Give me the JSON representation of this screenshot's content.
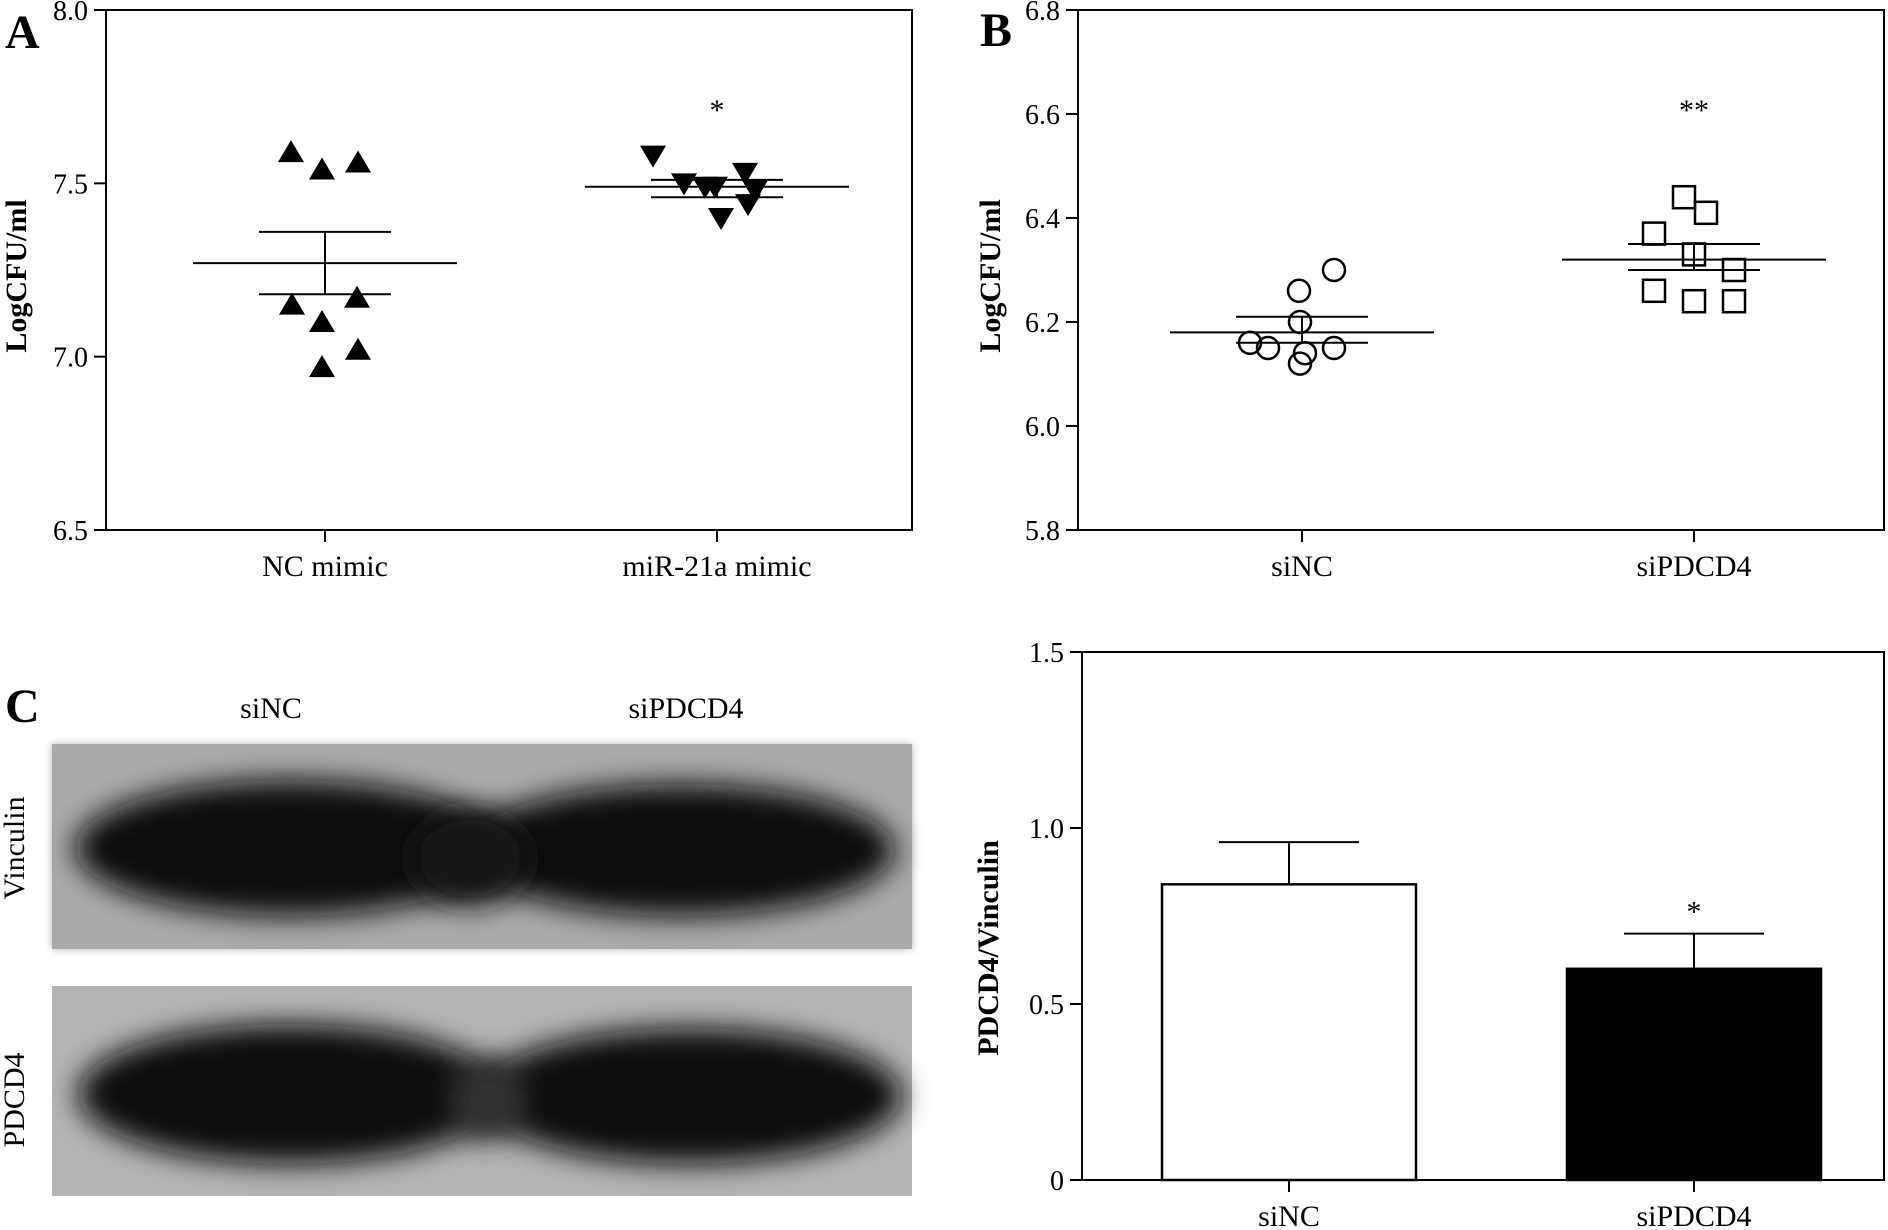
{
  "chart_data": [
    {
      "panel": "A",
      "type": "scatter",
      "ylabel": "LogCFU/ml",
      "ylim": [
        6.5,
        8.0
      ],
      "yticks": [
        "6.5",
        "7.0",
        "7.5",
        "8.0"
      ],
      "categories": [
        "NC mimic",
        "miR-21a mimic"
      ],
      "series": [
        {
          "category": "NC mimic",
          "marker": "triangle-up",
          "values": [
            7.59,
            7.54,
            7.56,
            7.15,
            7.17,
            7.1,
            7.02,
            6.97
          ],
          "mean": 7.27,
          "sem_upper": 7.36,
          "sem_lower": 7.18,
          "annotation": ""
        },
        {
          "category": "miR-21a mimic",
          "marker": "triangle-down",
          "values": [
            7.58,
            7.5,
            7.49,
            7.49,
            7.53,
            7.48,
            7.44,
            7.4
          ],
          "mean": 7.49,
          "sem_upper": 7.51,
          "sem_lower": 7.46,
          "annotation": "*"
        }
      ]
    },
    {
      "panel": "B",
      "type": "scatter",
      "ylabel": "LogCFU/ml",
      "ylim": [
        5.8,
        6.8
      ],
      "yticks": [
        "5.8",
        "6.0",
        "6.2",
        "6.4",
        "6.6",
        "6.8"
      ],
      "categories": [
        "siNC",
        "siPDCD4"
      ],
      "series": [
        {
          "category": "siNC",
          "marker": "circle-open",
          "values": [
            6.3,
            6.26,
            6.2,
            6.16,
            6.15,
            6.15,
            6.14,
            6.12
          ],
          "mean": 6.18,
          "sem_upper": 6.21,
          "sem_lower": 6.16,
          "annotation": ""
        },
        {
          "category": "siPDCD4",
          "marker": "square-open",
          "values": [
            6.44,
            6.41,
            6.37,
            6.33,
            6.3,
            6.26,
            6.24,
            6.24
          ],
          "mean": 6.32,
          "sem_upper": 6.35,
          "sem_lower": 6.3,
          "annotation": "**"
        }
      ]
    },
    {
      "panel": "C",
      "type": "bar",
      "ylabel": "PDCD4/Vinculin",
      "ylim": [
        0,
        1.5
      ],
      "yticks": [
        "0",
        "0.5",
        "1.0",
        "1.5"
      ],
      "categories": [
        "siNC",
        "siPDCD4"
      ],
      "values": [
        0.84,
        0.6
      ],
      "errors": [
        0.12,
        0.1
      ],
      "fill_colors": [
        "#ffffff",
        "#000000"
      ],
      "annotations": [
        "",
        "*"
      ]
    }
  ],
  "blot": {
    "panel_letter": "C",
    "column_labels": [
      "siNC",
      "siPDCD4"
    ],
    "row_labels": [
      "Vinculin",
      "PDCD4"
    ]
  },
  "panel_letters": [
    "A",
    "B"
  ]
}
